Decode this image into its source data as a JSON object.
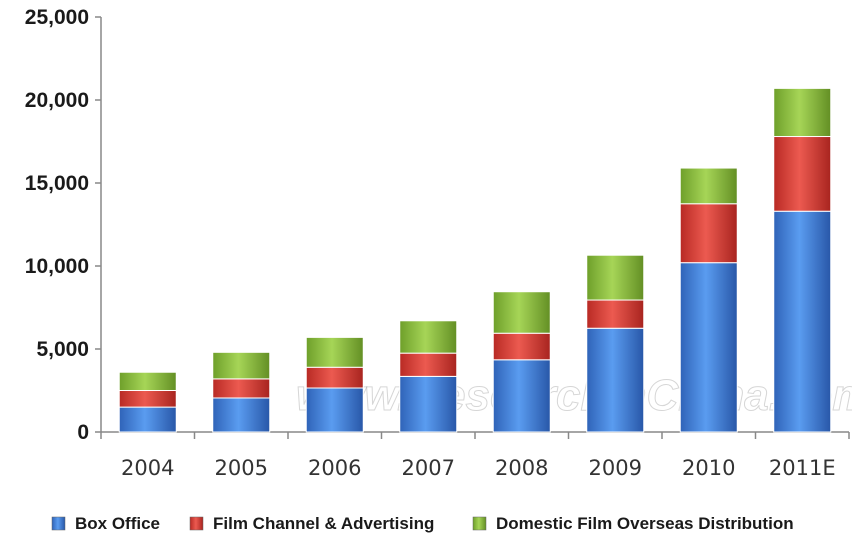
{
  "chart_data": {
    "type": "bar",
    "stacked": true,
    "categories": [
      "2004",
      "2005",
      "2006",
      "2007",
      "2008",
      "2009",
      "2010",
      "2011E"
    ],
    "series": [
      {
        "name": "Box Office",
        "color": "#3d7fd9",
        "values": [
          1500,
          2050,
          2650,
          3350,
          4350,
          6250,
          10200,
          13300
        ]
      },
      {
        "name": "Film Channel & Advertising",
        "color": "#d63a33",
        "values": [
          1000,
          1150,
          1250,
          1400,
          1600,
          1700,
          3550,
          4500
        ]
      },
      {
        "name": "Domestic Film Overseas Distribution",
        "color": "#8cc23d",
        "values": [
          1100,
          1600,
          1800,
          1950,
          2500,
          2700,
          2150,
          2900
        ]
      }
    ],
    "ylim": [
      0,
      25000
    ],
    "yticks": [
      "0",
      "5,000",
      "10,000",
      "15,000",
      "20,000",
      "25,000"
    ],
    "legend_position": "bottom",
    "grid": false
  },
  "watermark": "www.ResearchInChina.com"
}
